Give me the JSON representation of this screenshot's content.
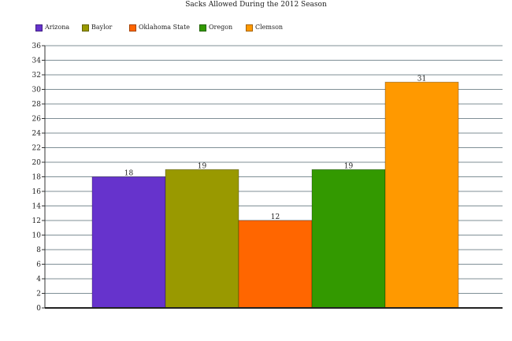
{
  "chart_data": {
    "type": "bar",
    "title": "Sacks Allowed During the 2012 Season",
    "categories": [
      "Arizona",
      "Baylor",
      "Oklahoma State",
      "Oregon",
      "Clemson"
    ],
    "values": [
      18,
      19,
      12,
      19,
      31
    ],
    "colors": [
      "#6633cc",
      "#999900",
      "#ff6600",
      "#339900",
      "#ff9900"
    ],
    "ylim": [
      0,
      36
    ],
    "ytick_step": 2,
    "grid": true,
    "legend_position": "top-left",
    "data_labels": true,
    "xlabel": "",
    "ylabel": ""
  }
}
